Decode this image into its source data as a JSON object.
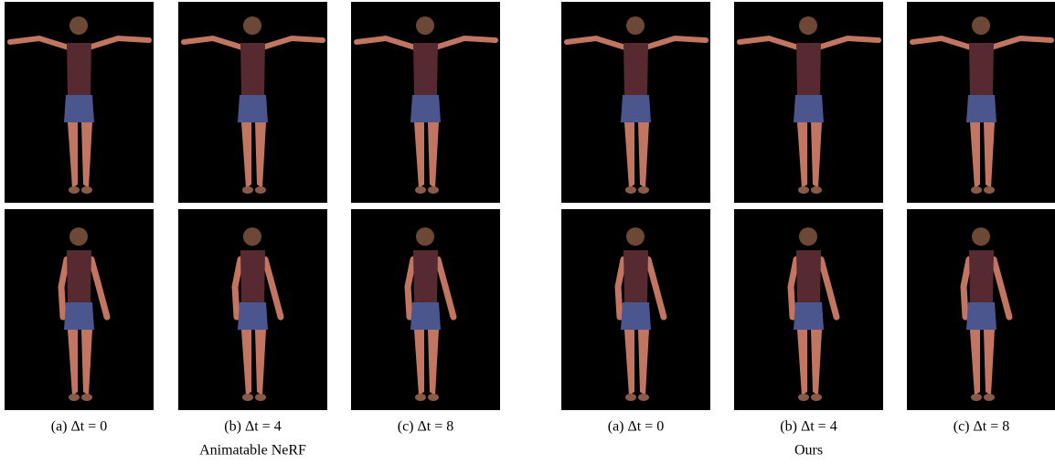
{
  "groups": [
    {
      "label": "Animatable NeRF",
      "captions": [
        "(a) Δt = 0",
        "(b) Δt = 4",
        "(c) Δt = 8"
      ]
    },
    {
      "label": "Ours",
      "captions": [
        "(a) Δt = 0",
        "(b) Δt = 4",
        "(c) Δt = 8"
      ]
    }
  ]
}
